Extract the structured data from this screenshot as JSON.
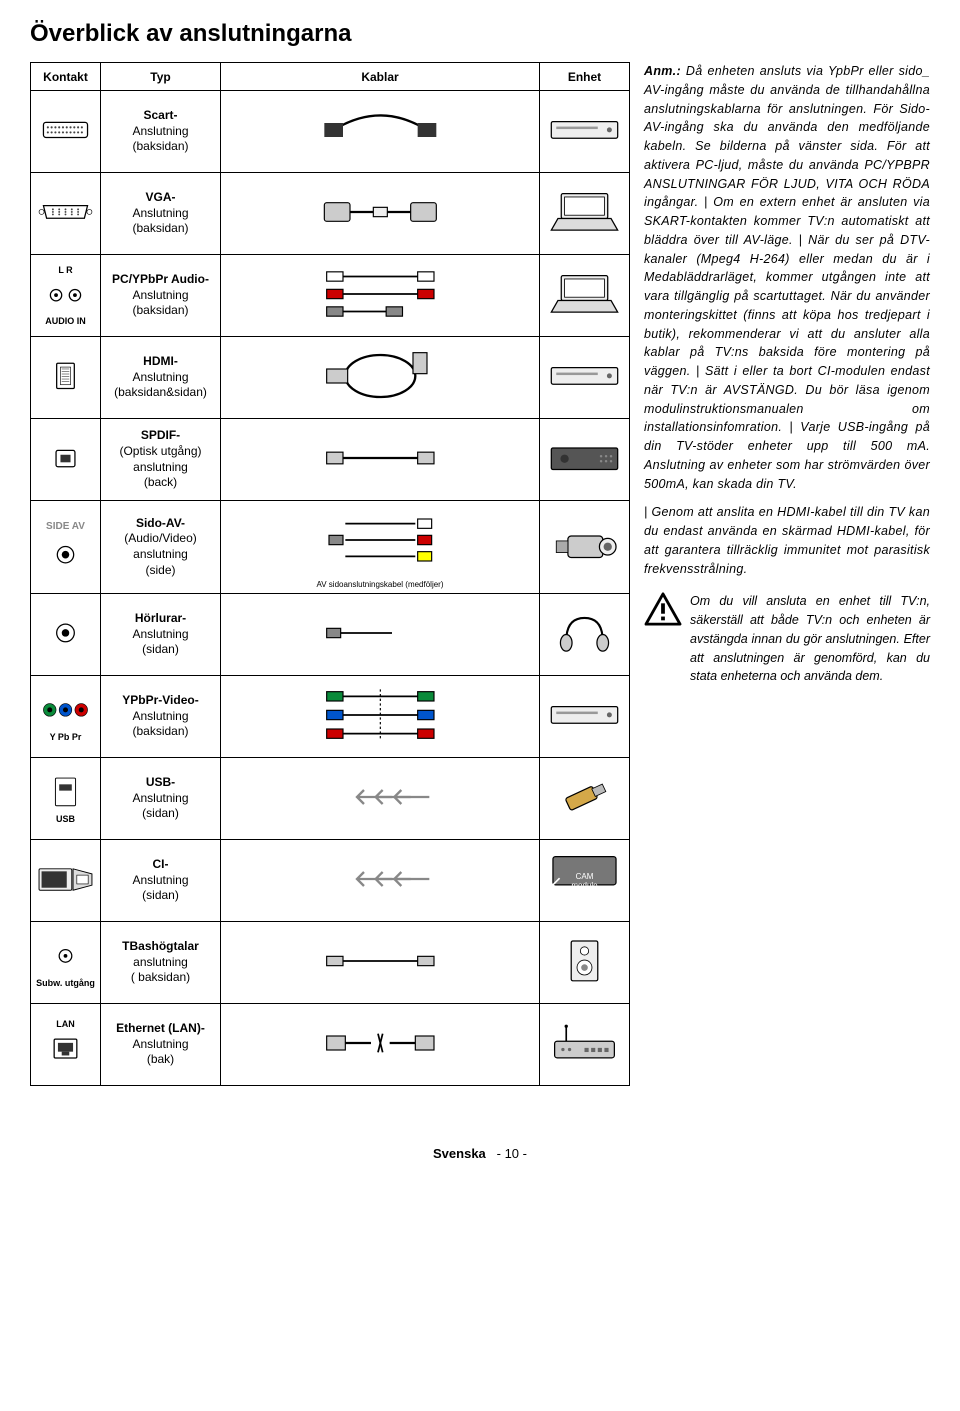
{
  "page": {
    "title": "Överblick av anslutningarna",
    "footer_lang": "Svenska",
    "footer_page": "- 10 -"
  },
  "table": {
    "headers": {
      "kontakt": "Kontakt",
      "typ": "Typ",
      "kablar": "Kablar",
      "enhet": "Enhet"
    },
    "rows": [
      {
        "kon": "scart-port",
        "typ_bold": "Scart-",
        "typ_lines": "Anslutning\n(baksidan)",
        "kab": "scart-cable",
        "enh": "dvd"
      },
      {
        "kon": "vga-port",
        "typ_bold": "VGA-",
        "typ_lines": "Anslutning\n(baksidan)",
        "kab": "vga-cable",
        "enh": "laptop"
      },
      {
        "kon": "audio-in",
        "kon_label": "AUDIO IN",
        "kon_toplabel": "L    R",
        "typ_bold": "PC/YPbPr Audio-",
        "typ_lines": "Anslutning\n(baksidan)",
        "kab": "rca-audio-cable",
        "enh": "laptop"
      },
      {
        "kon": "hdmi-port",
        "typ_bold": "HDMI-",
        "typ_lines": "Anslutning\n(baksidan&sidan)",
        "kab": "hdmi-cable",
        "enh": "dvd"
      },
      {
        "kon": "optical-port",
        "typ_bold": "SPDIF-",
        "typ_lines": "(Optisk utgång)\nanslutning\n(back)",
        "kab": "optical-cable",
        "enh": "receiver"
      },
      {
        "kon": "side-av-port",
        "kon_label": "SIDE AV",
        "typ_bold": "Sido-AV-",
        "typ_lines": "(Audio/Video)\nanslutning\n(side)",
        "kab": "av-cable",
        "kab_label": "AV sidoanslutningskabel (medföljer)",
        "enh": "camcorder"
      },
      {
        "kon": "headphone-port",
        "typ_bold": "Hörlurar-",
        "typ_lines": "Anslutning\n(sidan)",
        "kab": "headphone-cable",
        "enh": "headphones"
      },
      {
        "kon": "ypbpr-port",
        "kon_label": "Y   Pb   Pr",
        "typ_bold": "YPbPr-Video-",
        "typ_lines": "Anslutning\n(baksidan)",
        "kab": "ypbpr-cable",
        "enh": "dvd"
      },
      {
        "kon": "usb-port",
        "kon_label": "USB",
        "typ_bold": "USB-",
        "typ_lines": "Anslutning\n(sidan)",
        "kab": "arrows",
        "enh": "usb-stick"
      },
      {
        "kon": "ci-port",
        "typ_bold": "CI-",
        "typ_lines": "Anslutning\n(sidan)",
        "kab": "arrows",
        "enh": "cam-module",
        "enh_label": "CAM\nmodule"
      },
      {
        "kon": "subw-port",
        "kon_label": "Subw. utgång",
        "typ_bold": "TBashögtalar",
        "typ_lines": "anslutning\n( baksidan)",
        "kab": "rca-single-cable",
        "enh": "speaker"
      },
      {
        "kon": "lan-port",
        "kon_toplabel": "LAN",
        "typ_bold": "Ethernet (LAN)-",
        "typ_lines": "Anslutning\n(bak)",
        "kab": "lan-cable",
        "enh": "router"
      }
    ]
  },
  "note": {
    "heading": "Anm.:",
    "body": "Då enheten ansluts via YpbPr eller sido_ AV-ingång måste du använda de tillhandahållna anslutningskablarna för anslutningen. För Sido-AV-ingång ska du använda den medföljande kabeln. Se bilderna på vänster sida. För att aktivera PC-ljud, måste du använda PC/YPBPR ANSLUTNINGAR FÖR LJUD, VITA OCH RÖDA ingångar. | Om en extern enhet är ansluten via SKART-kontakten kommer TV:n automatiskt att bläddra över till AV-läge. | När du ser på DTV-kanaler (Mpeg4 H-264) eller medan du är i Medabläddrarläget, kommer utgången inte att vara tillgänglig på scartuttaget. När du använder monteringskittet (finns att köpa hos tredjepart i butik), rekommenderar vi att du ansluter alla kablar på TV:ns baksida före montering på väggen. | Sätt i eller ta bort CI-modulen endast när TV:n är AVSTÄNGD. Du bör läsa igenom modulinstruktionsmanualen om installationsinfomration. | Varje USB-ingång på din TV-stöder enheter upp till 500 mA. Anslutning av enheter som har strömvärden över 500mA, kan skada din TV.",
    "body2": "| Genom att anslita en HDMI-kabel till din TV kan du endast använda en skärmad HDMI-kabel, för att garantera tillräcklig immunitet mot parasitisk frekvensstrålning."
  },
  "warning": {
    "text": "Om du vill ansluta en enhet till TV:n, säkerställ att både TV:n och enheten är avstängda innan du gör anslutningen. Efter att anslutningen är genomförd, kan du stata enheterna och använda dem."
  },
  "colors": {
    "green": "#0a8a3a",
    "blue": "#0055cc",
    "red": "#cc0000",
    "gray": "#888888",
    "darkgray": "#444444"
  }
}
